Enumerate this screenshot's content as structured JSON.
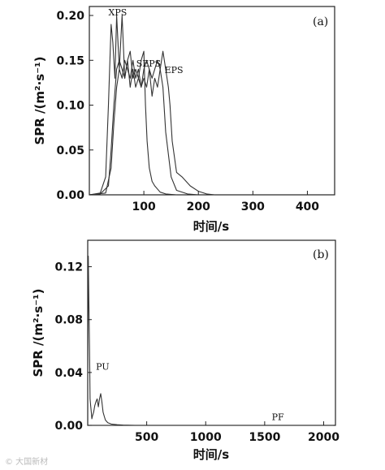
{
  "chart_data": [
    {
      "type": "line",
      "panel_label": "(a)",
      "xlabel": "时间/s",
      "ylabel": "SPR /(m²·s⁻¹)",
      "xlim": [
        0,
        450
      ],
      "ylim": [
        0,
        0.21
      ],
      "xticks": [
        100,
        200,
        300,
        400
      ],
      "yticks": [
        0.0,
        0.05,
        0.1,
        0.15,
        0.2
      ],
      "xtick_labels": [
        "100",
        "200",
        "300",
        "400"
      ],
      "ytick_labels": [
        "0.00",
        "0.05",
        "0.10",
        "0.15",
        "0.20"
      ],
      "series": [
        {
          "name": "XPS",
          "x": [
            0,
            20,
            30,
            35,
            40,
            43,
            47,
            50,
            55,
            60,
            65,
            70,
            75,
            80,
            85,
            90,
            95,
            100,
            103,
            106,
            110,
            115,
            120,
            130,
            140,
            160
          ],
          "y": [
            0,
            0.002,
            0.02,
            0.1,
            0.19,
            0.17,
            0.13,
            0.2,
            0.14,
            0.2,
            0.13,
            0.15,
            0.12,
            0.14,
            0.12,
            0.13,
            0.15,
            0.16,
            0.1,
            0.06,
            0.03,
            0.015,
            0.01,
            0.003,
            0.001,
            0
          ]
        },
        {
          "name": "SEPS",
          "x": [
            0,
            20,
            35,
            40,
            45,
            50,
            55,
            60,
            65,
            70,
            75,
            80,
            85,
            90,
            95,
            100,
            105,
            110,
            115,
            120,
            125,
            130,
            135,
            140,
            150,
            160,
            180,
            200
          ],
          "y": [
            0,
            0.001,
            0.01,
            0.05,
            0.1,
            0.14,
            0.15,
            0.14,
            0.13,
            0.15,
            0.16,
            0.13,
            0.14,
            0.13,
            0.12,
            0.14,
            0.15,
            0.14,
            0.13,
            0.14,
            0.15,
            0.14,
            0.12,
            0.07,
            0.02,
            0.005,
            0.001,
            0
          ]
        },
        {
          "name": "EPS",
          "x": [
            0,
            30,
            40,
            45,
            50,
            55,
            60,
            65,
            70,
            75,
            80,
            85,
            90,
            95,
            100,
            105,
            110,
            115,
            120,
            125,
            130,
            135,
            140,
            145,
            148,
            152,
            160,
            170,
            185,
            200,
            215,
            230
          ],
          "y": [
            0,
            0.002,
            0.03,
            0.08,
            0.12,
            0.14,
            0.13,
            0.15,
            0.14,
            0.13,
            0.15,
            0.13,
            0.14,
            0.12,
            0.13,
            0.12,
            0.14,
            0.11,
            0.13,
            0.12,
            0.14,
            0.16,
            0.14,
            0.12,
            0.1,
            0.06,
            0.025,
            0.02,
            0.01,
            0.004,
            0.001,
            0
          ]
        }
      ],
      "annotations": [
        {
          "text": "XPS",
          "x": 35,
          "y": 0.2
        },
        {
          "text": "SEPS",
          "x": 86,
          "y": 0.143
        },
        {
          "text": "EPS",
          "x": 138,
          "y": 0.136
        }
      ]
    },
    {
      "type": "line",
      "panel_label": "(b)",
      "xlabel": "时间/s",
      "ylabel": "SPR /(m²·s⁻¹)",
      "xlim": [
        0,
        2100
      ],
      "ylim": [
        0,
        0.14
      ],
      "xticks": [
        500,
        1000,
        1500,
        2000
      ],
      "yticks": [
        0.0,
        0.04,
        0.08,
        0.12
      ],
      "xtick_labels": [
        "500",
        "1000",
        "1500",
        "2000"
      ],
      "ytick_labels": [
        "0.00",
        "0.04",
        "0.08",
        "0.12"
      ],
      "series": [
        {
          "name": "PU",
          "x": [
            0,
            5,
            10,
            15,
            20,
            25,
            30,
            35,
            40,
            50,
            60,
            70,
            80,
            90,
            100,
            110,
            120,
            130,
            140,
            150,
            170,
            200,
            250,
            300,
            400
          ],
          "y": [
            0.03,
            0.128,
            0.09,
            0.06,
            0.02,
            0.015,
            0.01,
            0.005,
            0.007,
            0.01,
            0.015,
            0.018,
            0.02,
            0.014,
            0.02,
            0.024,
            0.018,
            0.01,
            0.007,
            0.004,
            0.002,
            0.001,
            0.0005,
            0.0002,
            0
          ]
        },
        {
          "name": "PF",
          "x": [
            0,
            500,
            1000,
            1500,
            2000,
            2080
          ],
          "y": [
            0,
            0,
            0,
            0,
            0,
            0
          ]
        }
      ],
      "annotations": [
        {
          "text": "PU",
          "x": 70,
          "y": 0.042
        },
        {
          "text": "PF",
          "x": 1560,
          "y": 0.004
        }
      ]
    }
  ],
  "watermark": "© 大国新材"
}
